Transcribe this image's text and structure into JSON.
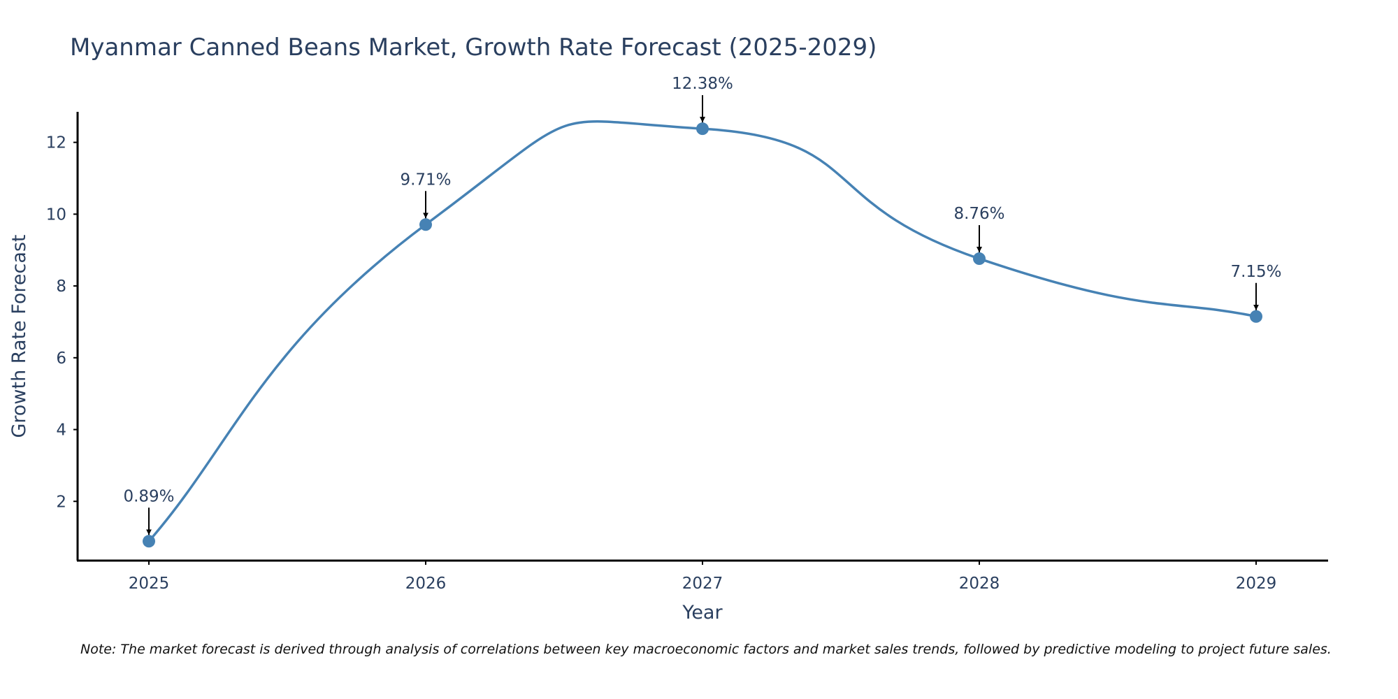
{
  "chart_data": {
    "type": "line",
    "title": "Myanmar Canned Beans Market, Growth Rate Forecast (2025-2029)",
    "xlabel": "Year",
    "ylabel": "Growth Rate Forecast",
    "categories": [
      "2025",
      "2026",
      "2027",
      "2028",
      "2029"
    ],
    "series": [
      {
        "name": "Growth Rate Forecast",
        "values": [
          0.89,
          9.71,
          12.38,
          8.76,
          7.15
        ],
        "data_labels": [
          "0.89%",
          "9.71%",
          "12.38%",
          "8.76%",
          "7.15%"
        ]
      }
    ],
    "ylim": [
      0.35,
      12.85
    ],
    "yticks": [
      2,
      4,
      6,
      8,
      10,
      12
    ],
    "grid": false,
    "line_shape": "spline",
    "colors": {
      "line": "#4682b4",
      "marker": "#4682b4",
      "axis": "#000000",
      "text": "#2a3f5f",
      "arrow": "#000000"
    }
  },
  "note": "Note: The market forecast is derived through analysis of correlations between key macroeconomic factors and market sales trends, followed by predictive modeling to project future sales."
}
